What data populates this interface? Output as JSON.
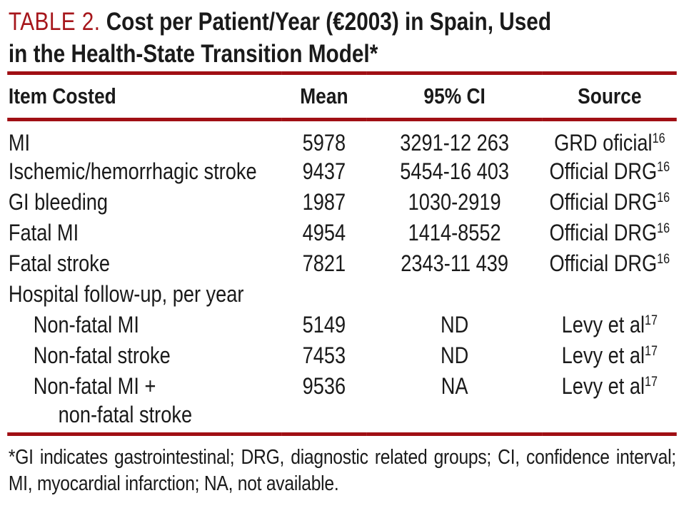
{
  "colors": {
    "accent_red": "#a6161b",
    "rule_red": "#a00f14",
    "text_black": "#1a1a1a"
  },
  "title": {
    "label": "TABLE 2.",
    "line1": "Cost per Patient/Year (€2003) in Spain, Used",
    "line2": "in the Health-State Transition Model*"
  },
  "table": {
    "headers": {
      "item": "Item Costed",
      "mean": "Mean",
      "ci": "95% CI",
      "source": "Source"
    },
    "rows": [
      {
        "item": "MI",
        "mean": "5978",
        "ci": "3291-12 263",
        "source": "GRD oficial",
        "source_ref": "16"
      },
      {
        "item": "Ischemic/hemorrhagic stroke",
        "mean": "9437",
        "ci": "5454-16 403",
        "source": "Official DRG",
        "source_ref": "16"
      },
      {
        "item": "GI bleeding",
        "mean": "1987",
        "ci": "1030-2919",
        "source": "Official DRG",
        "source_ref": "16"
      },
      {
        "item": "Fatal MI",
        "mean": "4954",
        "ci": "1414-8552",
        "source": "Official DRG",
        "source_ref": "16"
      },
      {
        "item": "Fatal stroke",
        "mean": "7821",
        "ci": "2343-11 439",
        "source": "Official DRG",
        "source_ref": "16"
      },
      {
        "item": "Hospital follow-up, per year",
        "mean": "",
        "ci": "",
        "source": "",
        "source_ref": ""
      },
      {
        "item": "Non-fatal MI",
        "mean": "5149",
        "ci": "ND",
        "source": "Levy et al",
        "source_ref": "17"
      },
      {
        "item": "Non-fatal stroke",
        "mean": "7453",
        "ci": "ND",
        "source": "Levy et al",
        "source_ref": "17"
      },
      {
        "item": "Non-fatal MI +",
        "mean": "9536",
        "ci": "NA",
        "source": "Levy et al",
        "source_ref": "17"
      },
      {
        "item": "non-fatal stroke",
        "mean": "",
        "ci": "",
        "source": "",
        "source_ref": ""
      }
    ]
  },
  "footnote": "*GI indicates gastrointestinal; DRG, diagnostic related groups; CI, confidence interval; MI, myocardial infarction; NA, not available."
}
